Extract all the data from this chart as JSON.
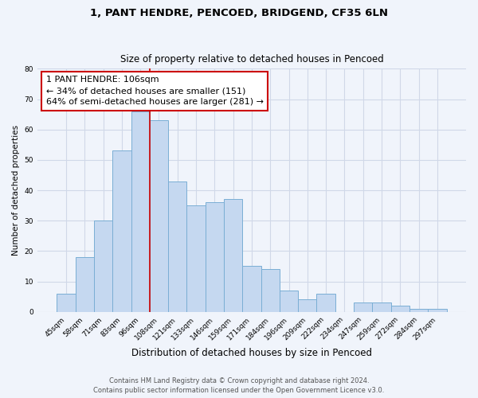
{
  "title1": "1, PANT HENDRE, PENCOED, BRIDGEND, CF35 6LN",
  "title2": "Size of property relative to detached houses in Pencoed",
  "xlabel": "Distribution of detached houses by size in Pencoed",
  "ylabel": "Number of detached properties",
  "categories": [
    "45sqm",
    "58sqm",
    "71sqm",
    "83sqm",
    "96sqm",
    "108sqm",
    "121sqm",
    "133sqm",
    "146sqm",
    "159sqm",
    "171sqm",
    "184sqm",
    "196sqm",
    "209sqm",
    "222sqm",
    "234sqm",
    "247sqm",
    "259sqm",
    "272sqm",
    "284sqm",
    "297sqm"
  ],
  "values": [
    6,
    18,
    30,
    53,
    66,
    63,
    43,
    35,
    36,
    37,
    15,
    14,
    7,
    4,
    6,
    0,
    3,
    3,
    2,
    1,
    1
  ],
  "bar_color": "#c5d8f0",
  "bar_edge_color": "#7aaed4",
  "property_line_x": 4.5,
  "property_line_color": "#cc0000",
  "annotation_text": "1 PANT HENDRE: 106sqm\n← 34% of detached houses are smaller (151)\n64% of semi-detached houses are larger (281) →",
  "annotation_box_color": "#ffffff",
  "annotation_box_edge_color": "#cc0000",
  "ylim": [
    0,
    80
  ],
  "yticks": [
    0,
    10,
    20,
    30,
    40,
    50,
    60,
    70,
    80
  ],
  "footer": "Contains HM Land Registry data © Crown copyright and database right 2024.\nContains public sector information licensed under the Open Government Licence v3.0.",
  "bg_color": "#f0f4fb",
  "plot_bg_color": "#f0f4fb",
  "grid_color": "#d0d8e8"
}
